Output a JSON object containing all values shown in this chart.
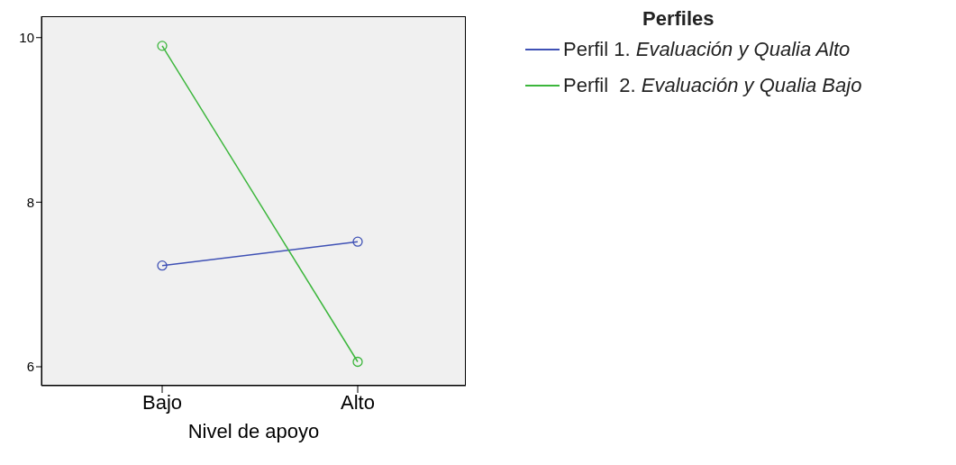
{
  "chart_data": {
    "type": "line",
    "xlabel": "Nivel de apoyo",
    "legend_title": "Perfiles",
    "categories": [
      "Bajo",
      "Alto"
    ],
    "series": [
      {
        "name": "Perfil 1. Evaluación y Qualia Alto",
        "color": "#3f51b5",
        "values": [
          7.23,
          7.52
        ]
      },
      {
        "name": "Perfil  2. Evaluación y Qualia Bajo",
        "color": "#3cb63c",
        "values": [
          9.9,
          6.06
        ]
      }
    ],
    "ylim": [
      5.77,
      10.26
    ],
    "yticks": [
      6,
      8,
      10
    ],
    "marker": "circle",
    "line_style": "solid",
    "legend": "right",
    "grid": false
  }
}
